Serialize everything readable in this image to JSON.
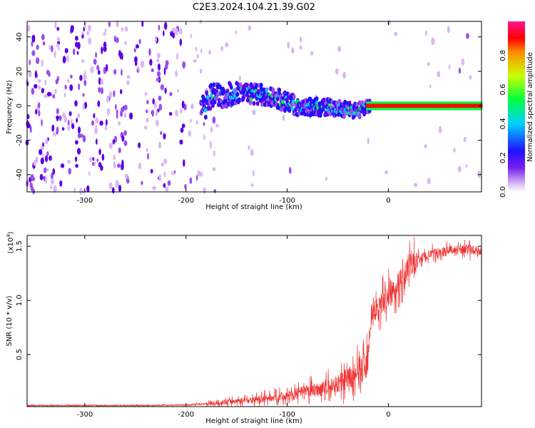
{
  "title": "C2E3.2024.104.21.39.G02",
  "chart_data": [
    {
      "type": "heatmap",
      "xlabel": "Height of straight line (km)",
      "ylabel": "Frequency (Hz)",
      "xlim": [
        -357,
        92
      ],
      "ylim": [
        -50,
        49
      ],
      "xticks": [
        -300,
        -200,
        -100,
        0
      ],
      "yticks": [
        -40,
        -20,
        0,
        20,
        40
      ],
      "colorbar": {
        "label": "Normalized spectral amplitude",
        "range": [
          0,
          1
        ],
        "ticks": [
          "0.0",
          "0.2",
          "0.4",
          "0.6",
          "0.8"
        ]
      },
      "colormap": [
        "#ffffff",
        "#dcb8f2",
        "#9a4ff0",
        "#5a00e6",
        "#1e10ff",
        "#00d2ff",
        "#00ff40",
        "#c8ff00",
        "#ff8c00",
        "#ff0000",
        "#ff00a0"
      ],
      "signal_track": [
        {
          "x": -180,
          "y": 5
        },
        {
          "x": -150,
          "y": 7
        },
        {
          "x": -120,
          "y": 6
        },
        {
          "x": -90,
          "y": 0
        },
        {
          "x": -60,
          "y": -1
        },
        {
          "x": -30,
          "y": -3
        },
        {
          "x": -20,
          "y": 0
        },
        {
          "x": 0,
          "y": 0
        },
        {
          "x": 92,
          "y": 0
        }
      ]
    },
    {
      "type": "line",
      "xlabel": "Height of straight line (km)",
      "ylabel": "SNR (10 * v/v)",
      "y_multiplier": "(x10",
      "y_multiplier_exp": "4",
      "y_multiplier_close": ")",
      "xlim": [
        -357,
        92
      ],
      "ylim": [
        0.02,
        1.6
      ],
      "xticks": [
        -300,
        -200,
        -100,
        0
      ],
      "yticks": [
        "0.5",
        "1.0",
        "1.5"
      ],
      "series": [
        {
          "color": "#f03232",
          "x": [
            -357,
            -300,
            -250,
            -200,
            -175,
            -150,
            -125,
            -100,
            -80,
            -60,
            -45,
            -35,
            -28,
            -22,
            -20,
            -18,
            -10,
            0,
            10,
            20,
            30,
            40,
            50,
            60,
            70,
            80,
            92
          ],
          "y": [
            0.03,
            0.03,
            0.03,
            0.035,
            0.05,
            0.07,
            0.09,
            0.12,
            0.16,
            0.2,
            0.25,
            0.3,
            0.35,
            0.4,
            0.55,
            0.8,
            0.95,
            1.05,
            1.15,
            1.3,
            1.38,
            1.42,
            1.44,
            1.46,
            1.47,
            1.47,
            1.45
          ]
        }
      ]
    }
  ]
}
